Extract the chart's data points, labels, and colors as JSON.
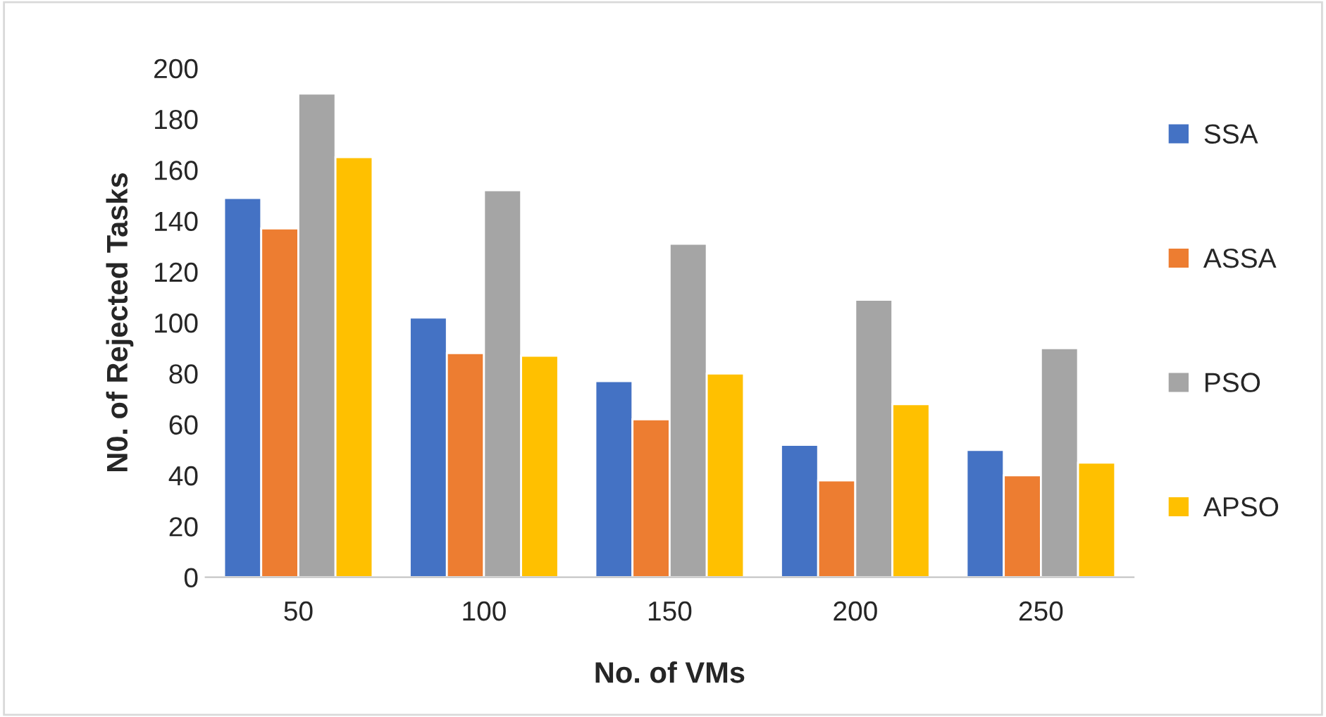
{
  "chart_data": {
    "type": "bar",
    "xlabel": "No. of VMs",
    "ylabel": "N0. of Rejected Tasks",
    "categories": [
      "50",
      "100",
      "150",
      "200",
      "250"
    ],
    "series": [
      {
        "name": "SSA",
        "color": "#4472c4",
        "values": [
          149,
          102,
          77,
          52,
          50
        ]
      },
      {
        "name": "ASSA",
        "color": "#ed7d31",
        "values": [
          137,
          88,
          62,
          38,
          40
        ]
      },
      {
        "name": "PSO",
        "color": "#a5a5a5",
        "values": [
          190,
          152,
          131,
          109,
          90
        ]
      },
      {
        "name": "APSO",
        "color": "#ffc000",
        "values": [
          165,
          87,
          80,
          68,
          45
        ]
      }
    ],
    "ylim": [
      0,
      200
    ],
    "yticks": [
      0,
      20,
      40,
      60,
      80,
      100,
      120,
      140,
      160,
      180,
      200
    ],
    "grid": false,
    "legend": "right"
  }
}
